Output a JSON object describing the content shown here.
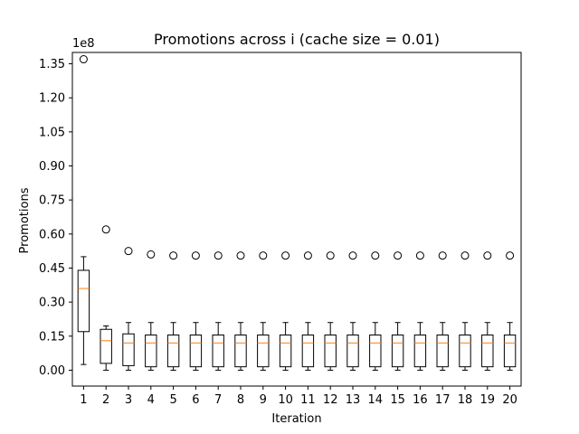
{
  "chart_data": {
    "type": "box",
    "title": "Promotions across i (cache size = 0.01)",
    "xlabel": "Iteration",
    "ylabel": "Promotions",
    "y_offset_label": "1e8",
    "y_scale_factor": 100000000,
    "ylim": [
      -0.07,
      1.4
    ],
    "yticks": [
      0.0,
      0.15,
      0.3,
      0.45,
      0.6,
      0.75,
      0.9,
      1.05,
      1.2,
      1.35
    ],
    "ytick_labels": [
      "0.00",
      "0.15",
      "0.30",
      "0.45",
      "0.60",
      "0.75",
      "0.90",
      "1.05",
      "1.20",
      "1.35"
    ],
    "categories": [
      "1",
      "2",
      "3",
      "4",
      "5",
      "6",
      "7",
      "8",
      "9",
      "10",
      "11",
      "12",
      "13",
      "14",
      "15",
      "16",
      "17",
      "18",
      "19",
      "20"
    ],
    "grid": false,
    "boxes": [
      {
        "whislo": 0.025,
        "q1": 0.17,
        "med": 0.36,
        "q3": 0.44,
        "whishi": 0.5,
        "fliers": [
          1.37
        ]
      },
      {
        "whislo": 0.0,
        "q1": 0.03,
        "med": 0.13,
        "q3": 0.18,
        "whishi": 0.195,
        "fliers": [
          0.62
        ]
      },
      {
        "whislo": 0.0,
        "q1": 0.02,
        "med": 0.12,
        "q3": 0.16,
        "whishi": 0.21,
        "fliers": [
          0.525
        ]
      },
      {
        "whislo": 0.0,
        "q1": 0.015,
        "med": 0.12,
        "q3": 0.155,
        "whishi": 0.21,
        "fliers": [
          0.51
        ]
      },
      {
        "whislo": 0.0,
        "q1": 0.015,
        "med": 0.12,
        "q3": 0.155,
        "whishi": 0.21,
        "fliers": [
          0.505
        ]
      },
      {
        "whislo": 0.0,
        "q1": 0.015,
        "med": 0.12,
        "q3": 0.155,
        "whishi": 0.21,
        "fliers": [
          0.505
        ]
      },
      {
        "whislo": 0.0,
        "q1": 0.015,
        "med": 0.12,
        "q3": 0.155,
        "whishi": 0.21,
        "fliers": [
          0.505
        ]
      },
      {
        "whislo": 0.0,
        "q1": 0.015,
        "med": 0.12,
        "q3": 0.155,
        "whishi": 0.21,
        "fliers": [
          0.505
        ]
      },
      {
        "whislo": 0.0,
        "q1": 0.015,
        "med": 0.12,
        "q3": 0.155,
        "whishi": 0.21,
        "fliers": [
          0.505
        ]
      },
      {
        "whislo": 0.0,
        "q1": 0.015,
        "med": 0.12,
        "q3": 0.155,
        "whishi": 0.21,
        "fliers": [
          0.505
        ]
      },
      {
        "whislo": 0.0,
        "q1": 0.015,
        "med": 0.12,
        "q3": 0.155,
        "whishi": 0.21,
        "fliers": [
          0.505
        ]
      },
      {
        "whislo": 0.0,
        "q1": 0.015,
        "med": 0.12,
        "q3": 0.155,
        "whishi": 0.21,
        "fliers": [
          0.505
        ]
      },
      {
        "whislo": 0.0,
        "q1": 0.015,
        "med": 0.12,
        "q3": 0.155,
        "whishi": 0.21,
        "fliers": [
          0.505
        ]
      },
      {
        "whislo": 0.0,
        "q1": 0.015,
        "med": 0.12,
        "q3": 0.155,
        "whishi": 0.21,
        "fliers": [
          0.505
        ]
      },
      {
        "whislo": 0.0,
        "q1": 0.015,
        "med": 0.12,
        "q3": 0.155,
        "whishi": 0.21,
        "fliers": [
          0.505
        ]
      },
      {
        "whislo": 0.0,
        "q1": 0.015,
        "med": 0.12,
        "q3": 0.155,
        "whishi": 0.21,
        "fliers": [
          0.505
        ]
      },
      {
        "whislo": 0.0,
        "q1": 0.015,
        "med": 0.12,
        "q3": 0.155,
        "whishi": 0.21,
        "fliers": [
          0.505
        ]
      },
      {
        "whislo": 0.0,
        "q1": 0.015,
        "med": 0.12,
        "q3": 0.155,
        "whishi": 0.21,
        "fliers": [
          0.505
        ]
      },
      {
        "whislo": 0.0,
        "q1": 0.015,
        "med": 0.12,
        "q3": 0.155,
        "whishi": 0.21,
        "fliers": [
          0.505
        ]
      },
      {
        "whislo": 0.0,
        "q1": 0.015,
        "med": 0.12,
        "q3": 0.155,
        "whishi": 0.21,
        "fliers": [
          0.505
        ]
      }
    ],
    "colors": {
      "box": "#000000",
      "median": "#ff7f0e",
      "flier": "#000000",
      "axes": "#000000",
      "background": "#ffffff"
    }
  }
}
